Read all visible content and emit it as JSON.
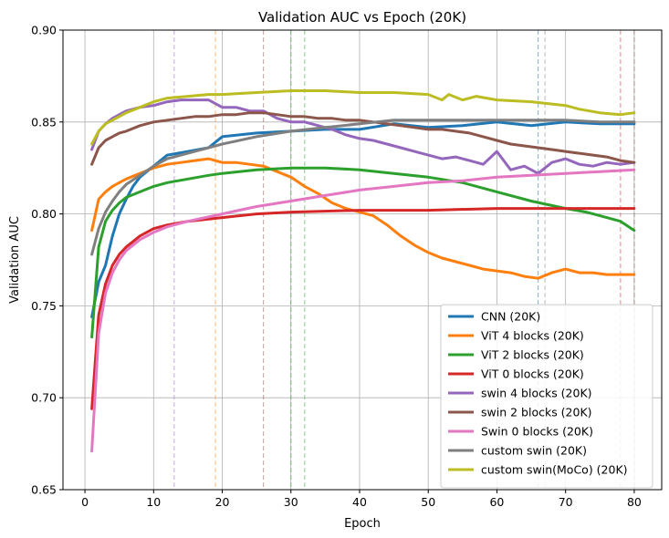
{
  "chart_data": {
    "type": "line",
    "title": "Validation AUC vs Epoch (20K)",
    "xlabel": "Epoch",
    "ylabel": "Validation AUC",
    "xlim": [
      -3.2,
      84
    ],
    "ylim": [
      0.65,
      0.9
    ],
    "xticks": [
      0,
      10,
      20,
      30,
      40,
      50,
      60,
      70,
      80
    ],
    "yticks": [
      0.65,
      0.7,
      0.75,
      0.8,
      0.85,
      0.9
    ],
    "ytick_labels": [
      "0.65",
      "0.70",
      "0.75",
      "0.80",
      "0.85",
      "0.90"
    ],
    "grid": true,
    "legend_position": "lower-right",
    "vlines": [
      {
        "x": 13,
        "color": "#9467bd"
      },
      {
        "x": 19,
        "color": "#ff7f0e"
      },
      {
        "x": 26,
        "color": "#8c564b"
      },
      {
        "x": 30,
        "color": "#2ca02c"
      },
      {
        "x": 32,
        "color": "#2ca02c"
      },
      {
        "x": 66,
        "color": "#1f77b4"
      },
      {
        "x": 67,
        "color": "#7f7f7f"
      },
      {
        "x": 78,
        "color": "#d62728"
      },
      {
        "x": 80,
        "color": "#8c564b"
      }
    ],
    "series": [
      {
        "name": "CNN (20K)",
        "color": "#1f77b4",
        "x": [
          1,
          2,
          3,
          4,
          5,
          6,
          7,
          8,
          10,
          12,
          15,
          18,
          20,
          25,
          30,
          35,
          40,
          45,
          50,
          55,
          60,
          65,
          70,
          75,
          80
        ],
        "values": [
          0.744,
          0.763,
          0.772,
          0.788,
          0.8,
          0.808,
          0.815,
          0.82,
          0.826,
          0.832,
          0.834,
          0.836,
          0.842,
          0.844,
          0.845,
          0.846,
          0.846,
          0.849,
          0.847,
          0.848,
          0.85,
          0.848,
          0.85,
          0.849,
          0.849
        ]
      },
      {
        "name": "ViT 4 blocks (20K)",
        "color": "#ff7f0e",
        "x": [
          1,
          2,
          3,
          4,
          5,
          6,
          8,
          10,
          12,
          14,
          16,
          18,
          20,
          22,
          24,
          26,
          28,
          30,
          32,
          34,
          36,
          38,
          40,
          42,
          44,
          46,
          48,
          50,
          52,
          54,
          56,
          58,
          60,
          62,
          64,
          66,
          68,
          70,
          72,
          74,
          76,
          78,
          80
        ],
        "values": [
          0.791,
          0.808,
          0.812,
          0.815,
          0.817,
          0.819,
          0.822,
          0.825,
          0.827,
          0.828,
          0.829,
          0.83,
          0.828,
          0.828,
          0.827,
          0.826,
          0.823,
          0.82,
          0.815,
          0.811,
          0.806,
          0.803,
          0.801,
          0.799,
          0.794,
          0.788,
          0.783,
          0.779,
          0.776,
          0.774,
          0.772,
          0.77,
          0.769,
          0.768,
          0.766,
          0.765,
          0.768,
          0.77,
          0.768,
          0.768,
          0.767,
          0.767,
          0.767
        ]
      },
      {
        "name": "ViT 2 blocks (20K)",
        "color": "#2ca02c",
        "x": [
          1,
          2,
          3,
          4,
          5,
          6,
          8,
          10,
          12,
          15,
          18,
          20,
          25,
          30,
          35,
          40,
          45,
          50,
          55,
          60,
          65,
          70,
          73,
          75,
          78,
          80
        ],
        "values": [
          0.733,
          0.782,
          0.796,
          0.802,
          0.806,
          0.809,
          0.812,
          0.815,
          0.817,
          0.819,
          0.821,
          0.822,
          0.824,
          0.825,
          0.825,
          0.824,
          0.822,
          0.82,
          0.817,
          0.812,
          0.807,
          0.803,
          0.801,
          0.799,
          0.796,
          0.791
        ]
      },
      {
        "name": "ViT 0 blocks (20K)",
        "color": "#d62728",
        "x": [
          1,
          2,
          3,
          4,
          5,
          6,
          8,
          10,
          12,
          15,
          20,
          25,
          30,
          40,
          50,
          60,
          70,
          80
        ],
        "values": [
          0.694,
          0.745,
          0.762,
          0.772,
          0.778,
          0.782,
          0.788,
          0.792,
          0.794,
          0.796,
          0.798,
          0.8,
          0.801,
          0.802,
          0.802,
          0.803,
          0.803,
          0.803
        ]
      },
      {
        "name": "swin 4 blocks (20K)",
        "color": "#9467bd",
        "x": [
          1,
          2,
          3,
          4,
          5,
          6,
          8,
          10,
          12,
          14,
          16,
          18,
          20,
          22,
          24,
          26,
          28,
          30,
          32,
          34,
          36,
          38,
          40,
          42,
          44,
          46,
          48,
          50,
          52,
          54,
          56,
          58,
          60,
          62,
          64,
          66,
          68,
          70,
          72,
          74,
          76,
          78,
          80
        ],
        "values": [
          0.835,
          0.845,
          0.849,
          0.852,
          0.854,
          0.856,
          0.858,
          0.859,
          0.861,
          0.862,
          0.862,
          0.862,
          0.858,
          0.858,
          0.856,
          0.856,
          0.852,
          0.85,
          0.85,
          0.848,
          0.846,
          0.843,
          0.841,
          0.84,
          0.838,
          0.836,
          0.834,
          0.832,
          0.83,
          0.831,
          0.829,
          0.827,
          0.834,
          0.824,
          0.826,
          0.822,
          0.828,
          0.83,
          0.827,
          0.826,
          0.828,
          0.827,
          0.828
        ]
      },
      {
        "name": "swin 2 blocks (20K)",
        "color": "#8c564b",
        "x": [
          1,
          2,
          3,
          4,
          5,
          6,
          8,
          10,
          12,
          14,
          16,
          18,
          20,
          22,
          24,
          26,
          28,
          30,
          32,
          34,
          36,
          38,
          40,
          42,
          44,
          46,
          48,
          50,
          52,
          54,
          56,
          58,
          60,
          62,
          64,
          66,
          68,
          70,
          72,
          74,
          76,
          78,
          80
        ],
        "values": [
          0.827,
          0.836,
          0.84,
          0.842,
          0.844,
          0.845,
          0.848,
          0.85,
          0.851,
          0.852,
          0.853,
          0.853,
          0.854,
          0.854,
          0.855,
          0.855,
          0.854,
          0.853,
          0.853,
          0.852,
          0.852,
          0.851,
          0.851,
          0.85,
          0.849,
          0.848,
          0.847,
          0.846,
          0.846,
          0.845,
          0.844,
          0.842,
          0.84,
          0.838,
          0.837,
          0.836,
          0.835,
          0.834,
          0.833,
          0.832,
          0.831,
          0.829,
          0.828
        ]
      },
      {
        "name": "Swin 0 blocks (20K)",
        "color": "#e377c2",
        "x": [
          1,
          2,
          3,
          4,
          5,
          6,
          8,
          10,
          12,
          15,
          20,
          25,
          30,
          35,
          40,
          45,
          50,
          55,
          60,
          65,
          70,
          75,
          80
        ],
        "values": [
          0.671,
          0.735,
          0.757,
          0.768,
          0.775,
          0.78,
          0.786,
          0.79,
          0.793,
          0.796,
          0.8,
          0.804,
          0.807,
          0.81,
          0.813,
          0.815,
          0.817,
          0.818,
          0.82,
          0.821,
          0.822,
          0.823,
          0.824
        ]
      },
      {
        "name": "custom swin (20K)",
        "color": "#7f7f7f",
        "x": [
          1,
          2,
          3,
          4,
          5,
          6,
          8,
          10,
          12,
          15,
          20,
          25,
          30,
          35,
          40,
          45,
          50,
          55,
          60,
          65,
          70,
          75,
          80
        ],
        "values": [
          0.778,
          0.792,
          0.801,
          0.807,
          0.812,
          0.816,
          0.821,
          0.826,
          0.83,
          0.833,
          0.838,
          0.842,
          0.845,
          0.847,
          0.849,
          0.851,
          0.851,
          0.851,
          0.851,
          0.851,
          0.851,
          0.85,
          0.85
        ]
      },
      {
        "name": "custom swin(MoCo) (20K)",
        "color": "#bcbd22",
        "x": [
          1,
          2,
          3,
          4,
          5,
          6,
          8,
          10,
          12,
          15,
          18,
          20,
          25,
          30,
          35,
          40,
          45,
          50,
          52,
          53,
          55,
          57,
          60,
          65,
          70,
          72,
          75,
          78,
          80
        ],
        "values": [
          0.838,
          0.845,
          0.849,
          0.851,
          0.853,
          0.855,
          0.858,
          0.861,
          0.863,
          0.864,
          0.865,
          0.865,
          0.866,
          0.867,
          0.867,
          0.866,
          0.866,
          0.865,
          0.862,
          0.865,
          0.862,
          0.864,
          0.862,
          0.861,
          0.859,
          0.857,
          0.855,
          0.854,
          0.855
        ]
      }
    ]
  }
}
